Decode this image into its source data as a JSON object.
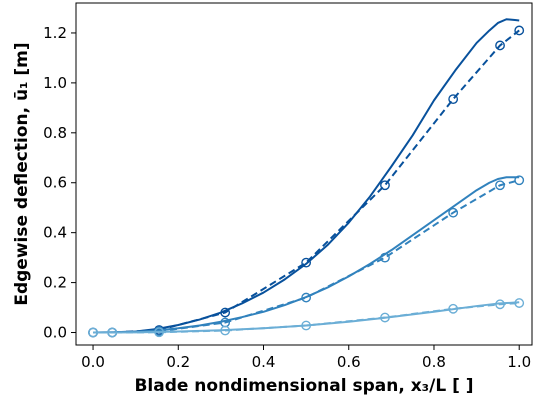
{
  "chart_data": {
    "type": "line",
    "xlabel": "Blade nondimensional span, x₃/L  [ ]",
    "ylabel": "Edgewise deflection, ū₁ [m]",
    "xlim": [
      -0.04,
      1.03
    ],
    "ylim": [
      -0.05,
      1.32
    ],
    "xticks": [
      "0.0",
      "0.2",
      "0.4",
      "0.6",
      "0.8",
      "1.0"
    ],
    "yticks": [
      "0.0",
      "0.2",
      "0.4",
      "0.6",
      "0.8",
      "1.0",
      "1.2"
    ],
    "grid": false,
    "marker_x": [
      0.0,
      0.045,
      0.155,
      0.31,
      0.5,
      0.685,
      0.845,
      0.955,
      1.0
    ],
    "series": [
      {
        "color": "#08519c",
        "solid": {
          "x": [
            0.0,
            0.05,
            0.1,
            0.15,
            0.2,
            0.25,
            0.3,
            0.35,
            0.4,
            0.45,
            0.5,
            0.55,
            0.6,
            0.65,
            0.7,
            0.75,
            0.8,
            0.85,
            0.9,
            0.93,
            0.95,
            0.97,
            0.99,
            1.0
          ],
          "y": [
            0.0,
            0.001,
            0.004,
            0.014,
            0.03,
            0.052,
            0.08,
            0.117,
            0.16,
            0.213,
            0.275,
            0.35,
            0.44,
            0.545,
            0.665,
            0.79,
            0.93,
            1.05,
            1.16,
            1.21,
            1.24,
            1.255,
            1.252,
            1.25
          ]
        },
        "dashed": {
          "x": [
            0.0,
            0.045,
            0.155,
            0.31,
            0.5,
            0.685,
            0.845,
            0.955,
            1.0
          ],
          "y": [
            0.0,
            0.0,
            0.01,
            0.08,
            0.28,
            0.59,
            0.935,
            1.15,
            1.21
          ]
        }
      },
      {
        "color": "#3182bd",
        "solid": {
          "x": [
            0.0,
            0.05,
            0.1,
            0.15,
            0.2,
            0.25,
            0.3,
            0.35,
            0.4,
            0.45,
            0.5,
            0.55,
            0.6,
            0.65,
            0.7,
            0.75,
            0.8,
            0.85,
            0.9,
            0.93,
            0.95,
            0.97,
            1.0
          ],
          "y": [
            0.0,
            0.001,
            0.003,
            0.008,
            0.017,
            0.028,
            0.043,
            0.062,
            0.083,
            0.11,
            0.142,
            0.18,
            0.225,
            0.275,
            0.33,
            0.39,
            0.45,
            0.51,
            0.57,
            0.6,
            0.615,
            0.622,
            0.622
          ]
        },
        "dashed": {
          "x": [
            0.0,
            0.045,
            0.155,
            0.31,
            0.5,
            0.685,
            0.845,
            0.955,
            1.0
          ],
          "y": [
            0.0,
            0.0,
            0.005,
            0.04,
            0.14,
            0.3,
            0.48,
            0.59,
            0.61
          ]
        }
      },
      {
        "color": "#6baed6",
        "solid": {
          "x": [
            0.0,
            0.1,
            0.2,
            0.3,
            0.4,
            0.5,
            0.6,
            0.7,
            0.8,
            0.9,
            0.95,
            1.0
          ],
          "y": [
            0.0,
            0.0008,
            0.004,
            0.009,
            0.017,
            0.028,
            0.043,
            0.062,
            0.083,
            0.106,
            0.116,
            0.121
          ]
        },
        "dashed": {
          "x": [
            0.0,
            0.045,
            0.155,
            0.31,
            0.5,
            0.685,
            0.845,
            0.955,
            1.0
          ],
          "y": [
            0.0,
            0.0,
            0.001,
            0.008,
            0.028,
            0.06,
            0.095,
            0.113,
            0.118
          ]
        }
      }
    ]
  }
}
